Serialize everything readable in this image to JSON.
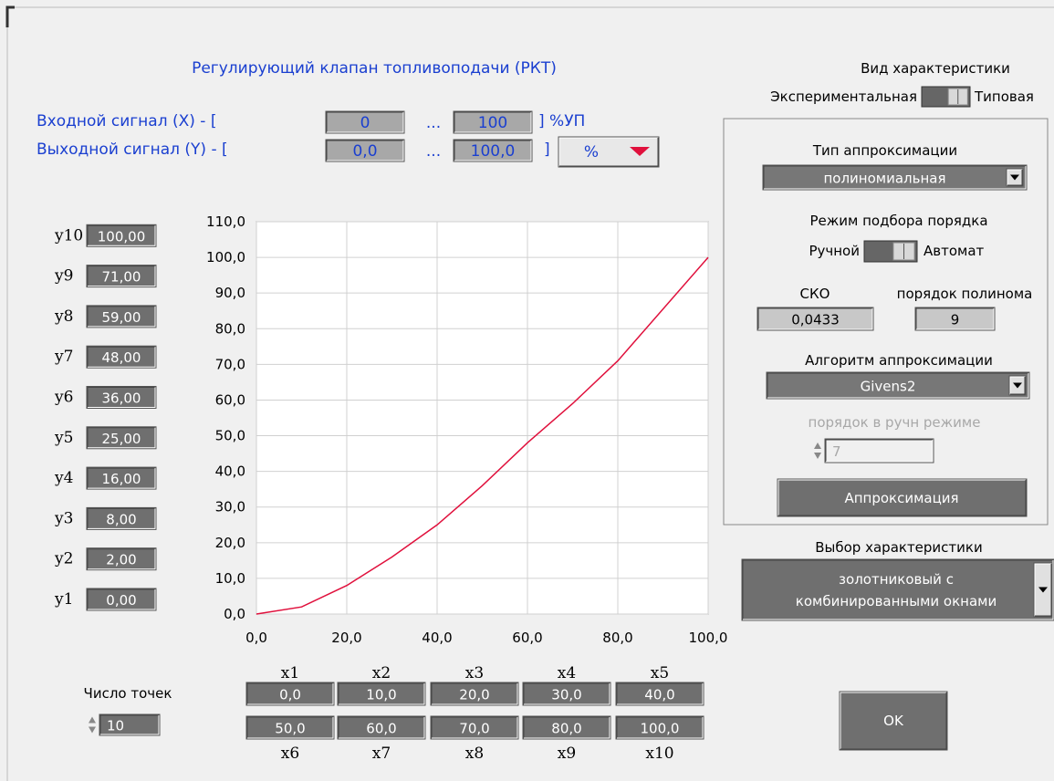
{
  "title": "Регулирующий клапан топливоподачи (РКТ)",
  "input_signal": {
    "label": "Входной сигнал (X)  -  [",
    "min": "0",
    "dots": "...",
    "max": "100",
    "unit": "] %УП"
  },
  "output_signal": {
    "label": "Выходной сигнал (Y)  -  [",
    "min": "0,0",
    "dots": "...",
    "max": "100,0",
    "close": "]",
    "unit": "%"
  },
  "chart_data": {
    "type": "line",
    "x": [
      0,
      10,
      20,
      30,
      40,
      50,
      60,
      70,
      80,
      100
    ],
    "x_labels": [
      "0,0",
      "10,0",
      "20,0",
      "30,0",
      "40,0",
      "50,0",
      "60,0",
      "70,0",
      "80,0",
      "100,0"
    ],
    "series": [
      {
        "color": "#e0103c",
        "values": [
          0,
          2,
          8,
          16,
          25,
          36,
          48,
          59,
          71,
          100
        ],
        "value_labels": [
          "0,00",
          "2,00",
          "8,00",
          "16,00",
          "25,00",
          "36,00",
          "48,00",
          "59,00",
          "71,00",
          "100,00"
        ]
      }
    ],
    "xlim": [
      0,
      100
    ],
    "xticks": [
      {
        "value": 0,
        "label": "0,0"
      },
      {
        "value": 20,
        "label": "20,0"
      },
      {
        "value": 40,
        "label": "40,0"
      },
      {
        "value": 60,
        "label": "60,0"
      },
      {
        "value": 80,
        "label": "80,0"
      },
      {
        "value": 100,
        "label": "100,0"
      }
    ],
    "ylim": [
      0,
      110
    ],
    "yticks": [
      {
        "value": 0,
        "label": "0,0"
      },
      {
        "value": 10,
        "label": "10,0"
      },
      {
        "value": 20,
        "label": "20,0"
      },
      {
        "value": 30,
        "label": "30,0"
      },
      {
        "value": 40,
        "label": "40,0"
      },
      {
        "value": 50,
        "label": "50,0"
      },
      {
        "value": 60,
        "label": "60,0"
      },
      {
        "value": 70,
        "label": "70,0"
      },
      {
        "value": 80,
        "label": "80,0"
      },
      {
        "value": 90,
        "label": "90,0"
      },
      {
        "value": 100,
        "label": "100,0"
      },
      {
        "value": 110,
        "label": "110,0"
      }
    ],
    "grid": true
  },
  "point_fields": {
    "x_names": [
      "x1",
      "x2",
      "x3",
      "x4",
      "x5",
      "x6",
      "x7",
      "x8",
      "x9",
      "x10"
    ],
    "y_names": [
      "y1",
      "y2",
      "y3",
      "y4",
      "y5",
      "y6",
      "y7",
      "y8",
      "y9",
      "y10"
    ]
  },
  "points_count": {
    "label": "Число точек",
    "value": "10"
  },
  "characteristic_view": {
    "label": "Вид характеристики",
    "left": "Экспериментальная",
    "right": "Типовая"
  },
  "approximation": {
    "type_label": "Тип аппроксимации",
    "type_value": "полиномиальная",
    "mode_label": "Режим подбора порядка",
    "mode_left": "Ручной",
    "mode_right": "Автомат",
    "rmse_label": "СКО",
    "rmse_value": "0,0433",
    "order_label": "порядок полинома",
    "order_value": "9",
    "algorithm_label": "Алгоритм аппроксимации",
    "algorithm_value": "Givens2",
    "manual_order_label": "порядок в ручн режиме",
    "manual_order_value": "7",
    "button": "Аппроксимация"
  },
  "characteristic_select": {
    "label": "Выбор характеристики",
    "value_lines": [
      "золотниковый с",
      "комбинированными окнами"
    ]
  },
  "ok_button": "OK"
}
